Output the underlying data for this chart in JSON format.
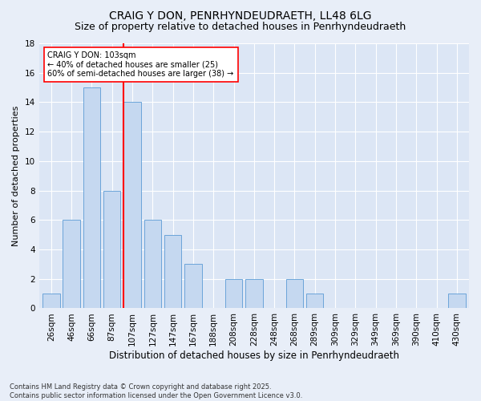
{
  "title": "CRAIG Y DON, PENRHYNDEUDRAETH, LL48 6LG",
  "subtitle": "Size of property relative to detached houses in Penrhyndeudraeth",
  "xlabel": "Distribution of detached houses by size in Penrhyndeudraeth",
  "ylabel": "Number of detached properties",
  "categories": [
    "26sqm",
    "46sqm",
    "66sqm",
    "87sqm",
    "107sqm",
    "127sqm",
    "147sqm",
    "167sqm",
    "188sqm",
    "208sqm",
    "228sqm",
    "248sqm",
    "268sqm",
    "289sqm",
    "309sqm",
    "329sqm",
    "349sqm",
    "369sqm",
    "390sqm",
    "410sqm",
    "430sqm"
  ],
  "values": [
    1,
    6,
    15,
    8,
    14,
    6,
    5,
    3,
    0,
    2,
    2,
    0,
    2,
    1,
    0,
    0,
    0,
    0,
    0,
    0,
    1
  ],
  "bar_color": "#c5d8f0",
  "bar_edge_color": "#5b9bd5",
  "red_line_index": 4,
  "annotation_title": "CRAIG Y DON: 103sqm",
  "annotation_line1": "← 40% of detached houses are smaller (25)",
  "annotation_line2": "60% of semi-detached houses are larger (38) →",
  "ylim": [
    0,
    18
  ],
  "yticks": [
    0,
    2,
    4,
    6,
    8,
    10,
    12,
    14,
    16,
    18
  ],
  "fig_bg_color": "#e8eef8",
  "plot_bg_color": "#dce6f5",
  "grid_color": "#ffffff",
  "footer": "Contains HM Land Registry data © Crown copyright and database right 2025.\nContains public sector information licensed under the Open Government Licence v3.0.",
  "title_fontsize": 10,
  "subtitle_fontsize": 9,
  "xlabel_fontsize": 8.5,
  "ylabel_fontsize": 8,
  "tick_fontsize": 7.5,
  "annotation_fontsize": 7,
  "footer_fontsize": 6
}
